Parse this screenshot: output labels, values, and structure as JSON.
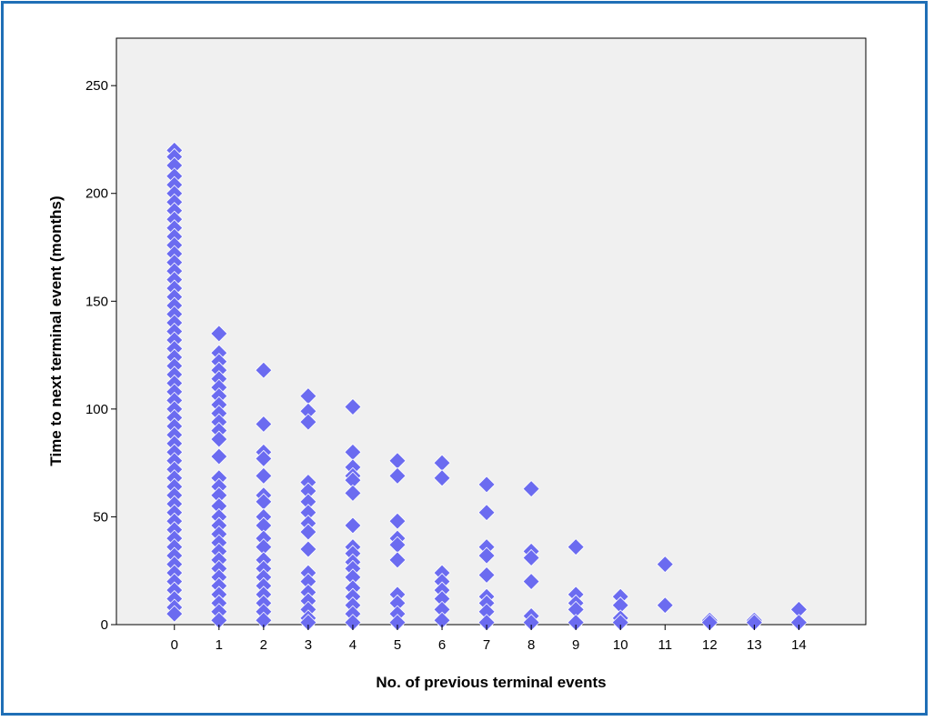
{
  "chart_data": {
    "type": "scatter",
    "xlabel": "No. of previous terminal events",
    "ylabel": "Time to next terminal event (months)",
    "xlim": [
      -1.3,
      15.5
    ],
    "ylim": [
      0,
      272
    ],
    "xticks": [
      0,
      1,
      2,
      3,
      4,
      5,
      6,
      7,
      8,
      9,
      10,
      11,
      12,
      13,
      14
    ],
    "yticks": [
      0,
      50,
      100,
      150,
      200,
      250
    ],
    "grid": false,
    "marker": "diamond",
    "colors": {
      "marker": "#6b6bf0",
      "plot_background": "#f0f0f0",
      "frame": "#1f6fb6"
    },
    "points": [
      [
        0,
        220
      ],
      [
        0,
        217
      ],
      [
        0,
        213
      ],
      [
        0,
        208
      ],
      [
        0,
        204
      ],
      [
        0,
        200
      ],
      [
        0,
        196
      ],
      [
        0,
        192
      ],
      [
        0,
        188
      ],
      [
        0,
        184
      ],
      [
        0,
        180
      ],
      [
        0,
        176
      ],
      [
        0,
        172
      ],
      [
        0,
        168
      ],
      [
        0,
        164
      ],
      [
        0,
        160
      ],
      [
        0,
        156
      ],
      [
        0,
        152
      ],
      [
        0,
        148
      ],
      [
        0,
        144
      ],
      [
        0,
        140
      ],
      [
        0,
        136
      ],
      [
        0,
        132
      ],
      [
        0,
        128
      ],
      [
        0,
        124
      ],
      [
        0,
        120
      ],
      [
        0,
        116
      ],
      [
        0,
        112
      ],
      [
        0,
        108
      ],
      [
        0,
        104
      ],
      [
        0,
        100
      ],
      [
        0,
        96
      ],
      [
        0,
        92
      ],
      [
        0,
        88
      ],
      [
        0,
        84
      ],
      [
        0,
        80
      ],
      [
        0,
        76
      ],
      [
        0,
        72
      ],
      [
        0,
        68
      ],
      [
        0,
        64
      ],
      [
        0,
        60
      ],
      [
        0,
        56
      ],
      [
        0,
        52
      ],
      [
        0,
        48
      ],
      [
        0,
        44
      ],
      [
        0,
        40
      ],
      [
        0,
        36
      ],
      [
        0,
        32
      ],
      [
        0,
        28
      ],
      [
        0,
        24
      ],
      [
        0,
        20
      ],
      [
        0,
        16
      ],
      [
        0,
        12
      ],
      [
        0,
        8
      ],
      [
        0,
        5
      ],
      [
        1,
        135
      ],
      [
        1,
        126
      ],
      [
        1,
        122
      ],
      [
        1,
        118
      ],
      [
        1,
        114
      ],
      [
        1,
        110
      ],
      [
        1,
        106
      ],
      [
        1,
        102
      ],
      [
        1,
        98
      ],
      [
        1,
        94
      ],
      [
        1,
        90
      ],
      [
        1,
        86
      ],
      [
        1,
        78
      ],
      [
        1,
        68
      ],
      [
        1,
        64
      ],
      [
        1,
        60
      ],
      [
        1,
        55
      ],
      [
        1,
        50
      ],
      [
        1,
        46
      ],
      [
        1,
        42
      ],
      [
        1,
        38
      ],
      [
        1,
        34
      ],
      [
        1,
        30
      ],
      [
        1,
        26
      ],
      [
        1,
        22
      ],
      [
        1,
        18
      ],
      [
        1,
        14
      ],
      [
        1,
        10
      ],
      [
        1,
        6
      ],
      [
        1,
        2
      ],
      [
        2,
        118
      ],
      [
        2,
        93
      ],
      [
        2,
        80
      ],
      [
        2,
        77
      ],
      [
        2,
        69
      ],
      [
        2,
        60
      ],
      [
        2,
        57
      ],
      [
        2,
        50
      ],
      [
        2,
        46
      ],
      [
        2,
        40
      ],
      [
        2,
        36
      ],
      [
        2,
        30
      ],
      [
        2,
        26
      ],
      [
        2,
        22
      ],
      [
        2,
        18
      ],
      [
        2,
        14
      ],
      [
        2,
        10
      ],
      [
        2,
        6
      ],
      [
        2,
        2
      ],
      [
        3,
        106
      ],
      [
        3,
        99
      ],
      [
        3,
        94
      ],
      [
        3,
        66
      ],
      [
        3,
        62
      ],
      [
        3,
        57
      ],
      [
        3,
        52
      ],
      [
        3,
        47
      ],
      [
        3,
        43
      ],
      [
        3,
        35
      ],
      [
        3,
        24
      ],
      [
        3,
        20
      ],
      [
        3,
        15
      ],
      [
        3,
        11
      ],
      [
        3,
        7
      ],
      [
        3,
        3
      ],
      [
        3,
        1
      ],
      [
        4,
        101
      ],
      [
        4,
        80
      ],
      [
        4,
        73
      ],
      [
        4,
        69
      ],
      [
        4,
        67
      ],
      [
        4,
        61
      ],
      [
        4,
        46
      ],
      [
        4,
        36
      ],
      [
        4,
        33
      ],
      [
        4,
        29
      ],
      [
        4,
        26
      ],
      [
        4,
        22
      ],
      [
        4,
        17
      ],
      [
        4,
        13
      ],
      [
        4,
        9
      ],
      [
        4,
        5
      ],
      [
        4,
        1
      ],
      [
        5,
        76
      ],
      [
        5,
        69
      ],
      [
        5,
        48
      ],
      [
        5,
        40
      ],
      [
        5,
        37
      ],
      [
        5,
        30
      ],
      [
        5,
        14
      ],
      [
        5,
        10
      ],
      [
        5,
        5
      ],
      [
        5,
        1
      ],
      [
        6,
        75
      ],
      [
        6,
        68
      ],
      [
        6,
        24
      ],
      [
        6,
        20
      ],
      [
        6,
        16
      ],
      [
        6,
        12
      ],
      [
        6,
        7
      ],
      [
        6,
        2
      ],
      [
        7,
        65
      ],
      [
        7,
        52
      ],
      [
        7,
        36
      ],
      [
        7,
        32
      ],
      [
        7,
        23
      ],
      [
        7,
        13
      ],
      [
        7,
        10
      ],
      [
        7,
        6
      ],
      [
        7,
        1
      ],
      [
        8,
        63
      ],
      [
        8,
        34
      ],
      [
        8,
        31
      ],
      [
        8,
        20
      ],
      [
        8,
        4
      ],
      [
        8,
        1
      ],
      [
        9,
        36
      ],
      [
        9,
        14
      ],
      [
        9,
        10
      ],
      [
        9,
        7
      ],
      [
        9,
        1
      ],
      [
        10,
        13
      ],
      [
        10,
        9
      ],
      [
        10,
        3
      ],
      [
        10,
        1
      ],
      [
        11,
        28
      ],
      [
        11,
        9
      ],
      [
        12,
        2
      ],
      [
        12,
        1
      ],
      [
        13,
        2
      ],
      [
        13,
        1
      ],
      [
        14,
        7
      ],
      [
        14,
        1
      ]
    ]
  }
}
